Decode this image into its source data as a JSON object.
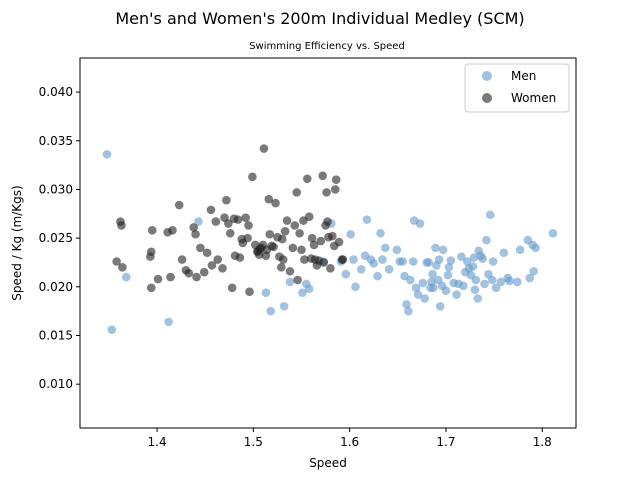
{
  "chart_data": {
    "type": "scatter",
    "title": "Men's and Women's 200m Individual Medley (SCM)",
    "subtitle": "Swimming Efficiency vs. Speed",
    "xlabel": "Speed",
    "ylabel": "Speed / Kg (m/Kgs)",
    "xlim": [
      1.32,
      1.835
    ],
    "ylim": [
      0.0055,
      0.0435
    ],
    "xticks": [
      1.4,
      1.5,
      1.6,
      1.7,
      1.8
    ],
    "xtick_labels": [
      "1.4",
      "1.5",
      "1.6",
      "1.7",
      "1.8"
    ],
    "yticks": [
      0.01,
      0.015,
      0.02,
      0.025,
      0.03,
      0.035,
      0.04
    ],
    "ytick_labels": [
      "0.010",
      "0.015",
      "0.020",
      "0.025",
      "0.030",
      "0.035",
      "0.040"
    ],
    "grid": false,
    "legend_position": "top-right",
    "series": [
      {
        "name": "Men",
        "color": "#6699cc",
        "alpha": 0.6,
        "points": [
          [
            1.348,
            0.0336
          ],
          [
            1.353,
            0.0156
          ],
          [
            1.368,
            0.021
          ],
          [
            1.412,
            0.0164
          ],
          [
            1.443,
            0.0267
          ],
          [
            1.513,
            0.0194
          ],
          [
            1.518,
            0.0175
          ],
          [
            1.532,
            0.018
          ],
          [
            1.538,
            0.0205
          ],
          [
            1.551,
            0.0194
          ],
          [
            1.555,
            0.0203
          ],
          [
            1.558,
            0.0198
          ],
          [
            1.573,
            0.0226
          ],
          [
            1.581,
            0.0265
          ],
          [
            1.591,
            0.0226
          ],
          [
            1.596,
            0.0213
          ],
          [
            1.601,
            0.0254
          ],
          [
            1.604,
            0.0228
          ],
          [
            1.606,
            0.02
          ],
          [
            1.612,
            0.0218
          ],
          [
            1.616,
            0.0232
          ],
          [
            1.618,
            0.0269
          ],
          [
            1.622,
            0.0228
          ],
          [
            1.625,
            0.0224
          ],
          [
            1.629,
            0.0211
          ],
          [
            1.632,
            0.0255
          ],
          [
            1.634,
            0.0228
          ],
          [
            1.637,
            0.024
          ],
          [
            1.641,
            0.0218
          ],
          [
            1.649,
            0.0238
          ],
          [
            1.652,
            0.0226
          ],
          [
            1.655,
            0.0226
          ],
          [
            1.657,
            0.0211
          ],
          [
            1.659,
            0.0182
          ],
          [
            1.661,
            0.0175
          ],
          [
            1.663,
            0.0207
          ],
          [
            1.666,
            0.0226
          ],
          [
            1.667,
            0.0268
          ],
          [
            1.669,
            0.0199
          ],
          [
            1.671,
            0.0192
          ],
          [
            1.673,
            0.0265
          ],
          [
            1.676,
            0.0204
          ],
          [
            1.678,
            0.0188
          ],
          [
            1.68,
            0.0225
          ],
          [
            1.682,
            0.0225
          ],
          [
            1.684,
            0.0199
          ],
          [
            1.685,
            0.0205
          ],
          [
            1.686,
            0.0213
          ],
          [
            1.687,
            0.0199
          ],
          [
            1.689,
            0.024
          ],
          [
            1.69,
            0.0222
          ],
          [
            1.692,
            0.0207
          ],
          [
            1.693,
            0.0228
          ],
          [
            1.694,
            0.018
          ],
          [
            1.696,
            0.0201
          ],
          [
            1.697,
            0.0238
          ],
          [
            1.7,
            0.0196
          ],
          [
            1.702,
            0.0212
          ],
          [
            1.703,
            0.022
          ],
          [
            1.705,
            0.0227
          ],
          [
            1.708,
            0.0204
          ],
          [
            1.711,
            0.0192
          ],
          [
            1.713,
            0.0203
          ],
          [
            1.716,
            0.0231
          ],
          [
            1.718,
            0.0201
          ],
          [
            1.72,
            0.0215
          ],
          [
            1.722,
            0.0226
          ],
          [
            1.724,
            0.0219
          ],
          [
            1.726,
            0.0212
          ],
          [
            1.728,
            0.0221
          ],
          [
            1.729,
            0.023
          ],
          [
            1.73,
            0.0197
          ],
          [
            1.731,
            0.0207
          ],
          [
            1.733,
            0.0188
          ],
          [
            1.734,
            0.0237
          ],
          [
            1.736,
            0.0232
          ],
          [
            1.738,
            0.0229
          ],
          [
            1.74,
            0.0203
          ],
          [
            1.742,
            0.0248
          ],
          [
            1.744,
            0.0213
          ],
          [
            1.746,
            0.0274
          ],
          [
            1.748,
            0.0207
          ],
          [
            1.749,
            0.0226
          ],
          [
            1.752,
            0.0199
          ],
          [
            1.757,
            0.0205
          ],
          [
            1.76,
            0.0235
          ],
          [
            1.764,
            0.0209
          ],
          [
            1.766,
            0.0206
          ],
          [
            1.774,
            0.0205
          ],
          [
            1.777,
            0.0238
          ],
          [
            1.785,
            0.0248
          ],
          [
            1.787,
            0.0209
          ],
          [
            1.79,
            0.0243
          ],
          [
            1.793,
            0.024
          ],
          [
            1.791,
            0.0216
          ],
          [
            1.811,
            0.0255
          ]
        ]
      },
      {
        "name": "Women",
        "color": "#222222",
        "alpha": 0.6,
        "points": [
          [
            1.358,
            0.0226
          ],
          [
            1.362,
            0.0267
          ],
          [
            1.363,
            0.0263
          ],
          [
            1.364,
            0.022
          ],
          [
            1.393,
            0.0231
          ],
          [
            1.394,
            0.0236
          ],
          [
            1.394,
            0.0199
          ],
          [
            1.395,
            0.0258
          ],
          [
            1.401,
            0.0208
          ],
          [
            1.411,
            0.0256
          ],
          [
            1.414,
            0.021
          ],
          [
            1.416,
            0.0258
          ],
          [
            1.423,
            0.0284
          ],
          [
            1.426,
            0.0228
          ],
          [
            1.43,
            0.0217
          ],
          [
            1.433,
            0.0214
          ],
          [
            1.438,
            0.0261
          ],
          [
            1.44,
            0.0254
          ],
          [
            1.441,
            0.021
          ],
          [
            1.445,
            0.024
          ],
          [
            1.449,
            0.0215
          ],
          [
            1.452,
            0.0235
          ],
          [
            1.456,
            0.0279
          ],
          [
            1.457,
            0.0222
          ],
          [
            1.461,
            0.0267
          ],
          [
            1.463,
            0.0228
          ],
          [
            1.468,
            0.0219
          ],
          [
            1.47,
            0.0271
          ],
          [
            1.472,
            0.0289
          ],
          [
            1.474,
            0.0265
          ],
          [
            1.476,
            0.0255
          ],
          [
            1.478,
            0.0199
          ],
          [
            1.48,
            0.027
          ],
          [
            1.481,
            0.0232
          ],
          [
            1.484,
            0.0269
          ],
          [
            1.486,
            0.023
          ],
          [
            1.488,
            0.0249
          ],
          [
            1.489,
            0.0245
          ],
          [
            1.492,
            0.0271
          ],
          [
            1.494,
            0.025
          ],
          [
            1.495,
            0.0263
          ],
          [
            1.496,
            0.0195
          ],
          [
            1.499,
            0.0313
          ],
          [
            1.502,
            0.0243
          ],
          [
            1.504,
            0.0236
          ],
          [
            1.505,
            0.0237
          ],
          [
            1.506,
            0.0233
          ],
          [
            1.507,
            0.0239
          ],
          [
            1.508,
            0.024
          ],
          [
            1.51,
            0.0243
          ],
          [
            1.511,
            0.0342
          ],
          [
            1.513,
            0.0232
          ],
          [
            1.514,
            0.0238
          ],
          [
            1.516,
            0.029
          ],
          [
            1.517,
            0.0254
          ],
          [
            1.519,
            0.0242
          ],
          [
            1.521,
            0.0241
          ],
          [
            1.523,
            0.0286
          ],
          [
            1.525,
            0.0251
          ],
          [
            1.527,
            0.0231
          ],
          [
            1.529,
            0.022
          ],
          [
            1.53,
            0.0249
          ],
          [
            1.531,
            0.0228
          ],
          [
            1.533,
            0.0257
          ],
          [
            1.535,
            0.0268
          ],
          [
            1.538,
            0.0216
          ],
          [
            1.541,
            0.024
          ],
          [
            1.543,
            0.0263
          ],
          [
            1.545,
            0.0297
          ],
          [
            1.546,
            0.0207
          ],
          [
            1.548,
            0.0255
          ],
          [
            1.55,
            0.0238
          ],
          [
            1.552,
            0.0268
          ],
          [
            1.553,
            0.0228
          ],
          [
            1.556,
            0.0311
          ],
          [
            1.558,
            0.0272
          ],
          [
            1.56,
            0.0229
          ],
          [
            1.561,
            0.025
          ],
          [
            1.563,
            0.0243
          ],
          [
            1.564,
            0.0228
          ],
          [
            1.566,
            0.0222
          ],
          [
            1.568,
            0.0227
          ],
          [
            1.57,
            0.0247
          ],
          [
            1.572,
            0.0314
          ],
          [
            1.573,
            0.0225
          ],
          [
            1.575,
            0.0263
          ],
          [
            1.576,
            0.0297
          ],
          [
            1.577,
            0.0267
          ],
          [
            1.578,
            0.0251
          ],
          [
            1.58,
            0.0219
          ],
          [
            1.582,
            0.0252
          ],
          [
            1.584,
            0.0242
          ],
          [
            1.585,
            0.03
          ],
          [
            1.586,
            0.031
          ],
          [
            1.589,
            0.0246
          ],
          [
            1.592,
            0.0228
          ],
          [
            1.593,
            0.0228
          ]
        ]
      }
    ]
  }
}
